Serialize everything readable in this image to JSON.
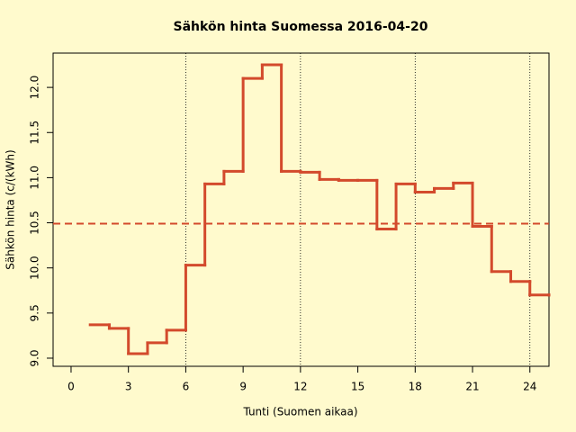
{
  "chart_data": {
    "type": "step",
    "title": "Sähkön hinta Suomessa 2016-04-20",
    "xlabel": "Tunti (Suomen aikaa)",
    "ylabel": "Sähkön hinta (c/(kWh)",
    "x": [
      1,
      2,
      3,
      4,
      5,
      6,
      7,
      8,
      9,
      10,
      11,
      12,
      13,
      14,
      15,
      16,
      17,
      18,
      19,
      20,
      21,
      22,
      23,
      24,
      25
    ],
    "series": [
      {
        "color": "#d34a2c",
        "values": [
          9.37,
          9.33,
          9.05,
          9.17,
          9.31,
          10.03,
          10.93,
          11.07,
          12.1,
          12.25,
          11.07,
          11.06,
          10.98,
          10.97,
          10.97,
          10.43,
          10.93,
          10.84,
          10.88,
          10.94,
          10.46,
          9.96,
          9.85,
          9.7,
          9.7
        ]
      }
    ],
    "mean_line": {
      "value": 10.49,
      "color": "#d34a2c"
    },
    "xlim": [
      -0.94,
      25
    ],
    "ylim": [
      8.91,
      12.38
    ],
    "xticks": [
      0,
      3,
      6,
      9,
      12,
      15,
      18,
      21,
      24
    ],
    "yticks": [
      {
        "value": 9,
        "label": "9.0"
      },
      9.5,
      {
        "value": 10,
        "label": "10.0"
      },
      10.5,
      {
        "value": 11,
        "label": "11.0"
      },
      11.5,
      {
        "value": 12,
        "label": "12.0"
      }
    ],
    "vgrid": [
      6,
      12,
      18,
      24
    ]
  }
}
